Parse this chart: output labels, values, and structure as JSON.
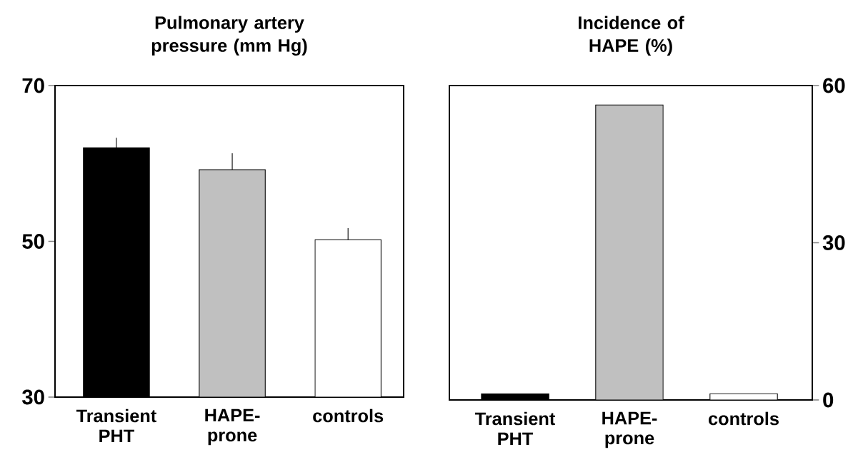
{
  "chart_data": [
    {
      "type": "bar",
      "title": "Pulmonary artery pressure (mm Hg)",
      "categories": [
        "Transient PHT",
        "HAPE-prone",
        "controls"
      ],
      "values": [
        62.0,
        59.2,
        50.2
      ],
      "colors": [
        "#000000",
        "#c0c0c0",
        "#ffffff"
      ],
      "errors": [
        [
          62.0,
          63.3
        ],
        [
          59.2,
          61.3
        ],
        [
          50.2,
          51.7
        ]
      ],
      "ylim": [
        30,
        70
      ],
      "yticks": [
        30,
        50,
        70
      ],
      "grid": false
    },
    {
      "type": "bar",
      "title": "Incidence of HAPE (%)",
      "categories": [
        "Transient PHT",
        "HAPE-prone",
        "controls"
      ],
      "values": [
        1.2,
        56.3,
        1.2
      ],
      "colors": [
        "#000000",
        "#c0c0c0",
        "#ffffff"
      ],
      "ylim": [
        0,
        60
      ],
      "yticks": [
        0,
        30,
        60
      ],
      "grid": false
    }
  ]
}
